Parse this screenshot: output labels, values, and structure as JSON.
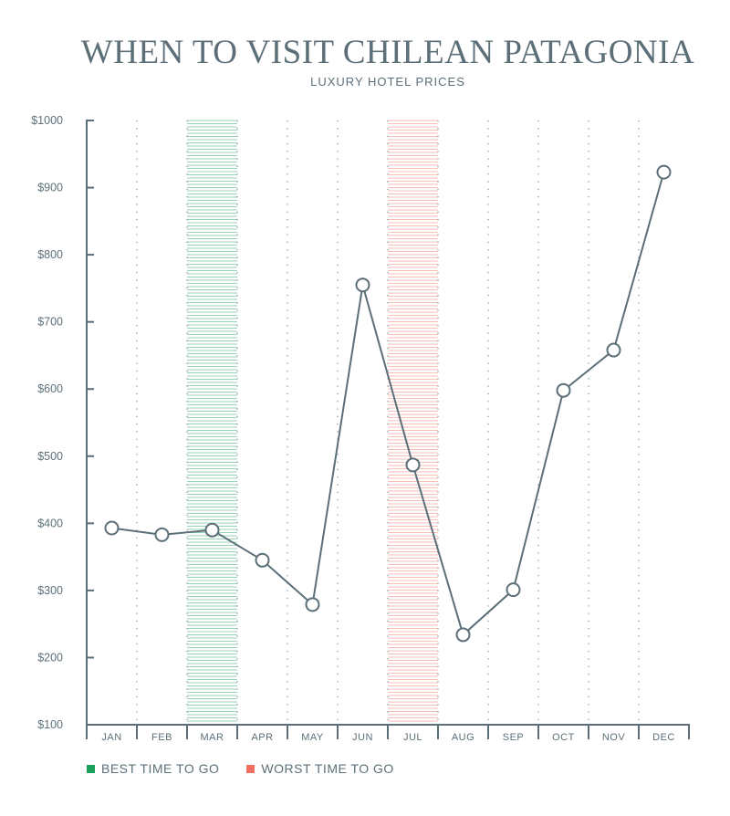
{
  "title": "WHEN TO VISIT CHILEAN PATAGONIA",
  "subtitle": "LUXURY HOTEL PRICES",
  "legend": {
    "best": {
      "label": "BEST TIME TO GO",
      "color": "#1a9e5c"
    },
    "worst": {
      "label": "WORST TIME TO GO",
      "color": "#f07060"
    }
  },
  "colors": {
    "line": "#5c6f78",
    "axis": "#5c6f78",
    "grid": "#8a9aa2"
  },
  "chart_data": {
    "type": "line",
    "categories": [
      "JAN",
      "FEB",
      "MAR",
      "APR",
      "MAY",
      "JUN",
      "JUL",
      "AUG",
      "SEP",
      "OCT",
      "NOV",
      "DEC"
    ],
    "series": [
      {
        "values": [
          393,
          383,
          390,
          345,
          279,
          755,
          487,
          234,
          301,
          598,
          658,
          923
        ]
      }
    ],
    "ylim": [
      100,
      1000
    ],
    "yticks": [
      100,
      200,
      300,
      400,
      500,
      600,
      700,
      800,
      900,
      1000
    ],
    "ytick_labels": [
      "$100",
      "$200",
      "$300",
      "$400",
      "$500",
      "$600",
      "$700",
      "$800",
      "$900",
      "$1000"
    ],
    "highlight_best": "MAR",
    "highlight_worst": "JUL",
    "grid": "vertical dotted",
    "legend_position": "bottom-left"
  }
}
